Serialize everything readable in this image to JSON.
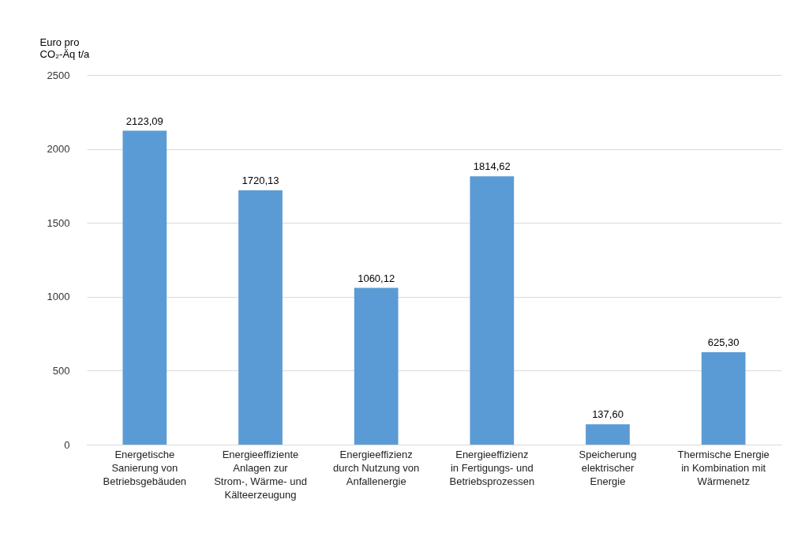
{
  "chart_data": {
    "type": "bar",
    "ylabel": "Euro pro CO₂-Äq t/a",
    "categories": [
      "Energetische Sanierung von Betriebsgebäuden",
      "Energieeffiziente Anlagen zur Strom-, Wärme- und Kälteerzeugung",
      "Energieeffizienz durch Nutzung von Anfallenergie",
      "Energieeffizienz in Fertigungs- und Betriebsprozessen",
      "Speicherung elektrischer Energie",
      "Thermische Energie in Kombination mit Wärmenetz"
    ],
    "values": [
      2123.09,
      1720.13,
      1060.12,
      1814.62,
      137.6,
      625.3
    ],
    "value_labels": [
      "2123,09",
      "1720,13",
      "1060,12",
      "1814,62",
      "137,60",
      "625,30"
    ],
    "color": "#5b9bd5",
    "ylim": [
      0,
      2500
    ],
    "yticks": [
      0,
      500,
      1000,
      1500,
      2000,
      2500
    ],
    "grid": "y"
  }
}
